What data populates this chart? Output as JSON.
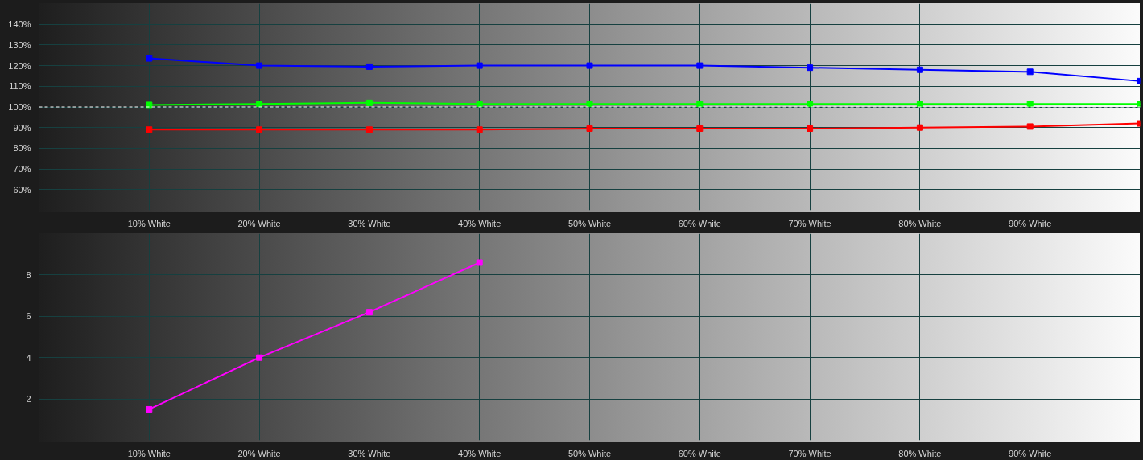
{
  "chart_data": [
    {
      "type": "line",
      "x": [
        10,
        20,
        30,
        40,
        50,
        60,
        70,
        80,
        90,
        100
      ],
      "series": [
        {
          "color": "#0000ff",
          "values": [
            123.5,
            120,
            119.5,
            120,
            120,
            120,
            119,
            118,
            117,
            112.5
          ]
        },
        {
          "color": "#00ff00",
          "values": [
            101,
            101.5,
            102,
            101.5,
            101.5,
            101.5,
            101.5,
            101.5,
            101.5,
            101.5
          ]
        },
        {
          "color": "#ff0000",
          "values": [
            89,
            89,
            89,
            89,
            89.5,
            89.5,
            89.5,
            90,
            90.5,
            92
          ]
        }
      ],
      "xlim": [
        0,
        100
      ],
      "xticks": [
        {
          "value": 10,
          "label": "10% White"
        },
        {
          "value": 20,
          "label": "20% White"
        },
        {
          "value": 30,
          "label": "30% White"
        },
        {
          "value": 40,
          "label": "40% White"
        },
        {
          "value": 50,
          "label": "50% White"
        },
        {
          "value": 60,
          "label": "60% White"
        },
        {
          "value": 70,
          "label": "70% White"
        },
        {
          "value": 80,
          "label": "80% White"
        },
        {
          "value": 90,
          "label": "90% White"
        }
      ],
      "ylim": [
        50,
        150
      ],
      "yticks": [
        {
          "value": 60,
          "label": "60%"
        },
        {
          "value": 70,
          "label": "70%"
        },
        {
          "value": 80,
          "label": "80%"
        },
        {
          "value": 90,
          "label": "90%"
        },
        {
          "value": 100,
          "label": "100%"
        },
        {
          "value": 110,
          "label": "110%"
        },
        {
          "value": 120,
          "label": "120%"
        },
        {
          "value": 130,
          "label": "130%"
        },
        {
          "value": 140,
          "label": "140%"
        }
      ],
      "ref_lines": [
        {
          "axis": "y",
          "value": 100,
          "color": "#ffffff",
          "line_style": "dashed"
        }
      ],
      "grid": true,
      "marker": "square",
      "line_style": "solid"
    },
    {
      "type": "line",
      "x": [
        10,
        20,
        30,
        40
      ],
      "series": [
        {
          "color": "#ff00ff",
          "values": [
            1.5,
            4,
            6.2,
            8.6
          ]
        }
      ],
      "xlim": [
        0,
        100
      ],
      "xticks": [
        {
          "value": 10,
          "label": "10% White"
        },
        {
          "value": 20,
          "label": "20% White"
        },
        {
          "value": 30,
          "label": "30% White"
        },
        {
          "value": 40,
          "label": "40% White"
        },
        {
          "value": 50,
          "label": "50% White"
        },
        {
          "value": 60,
          "label": "60% White"
        },
        {
          "value": 70,
          "label": "70% White"
        },
        {
          "value": 80,
          "label": "80% White"
        },
        {
          "value": 90,
          "label": "90% White"
        }
      ],
      "ylim": [
        0,
        10
      ],
      "yticks": [
        2,
        4,
        6,
        8
      ],
      "grid": true,
      "marker": "square",
      "line_style": "solid"
    }
  ]
}
